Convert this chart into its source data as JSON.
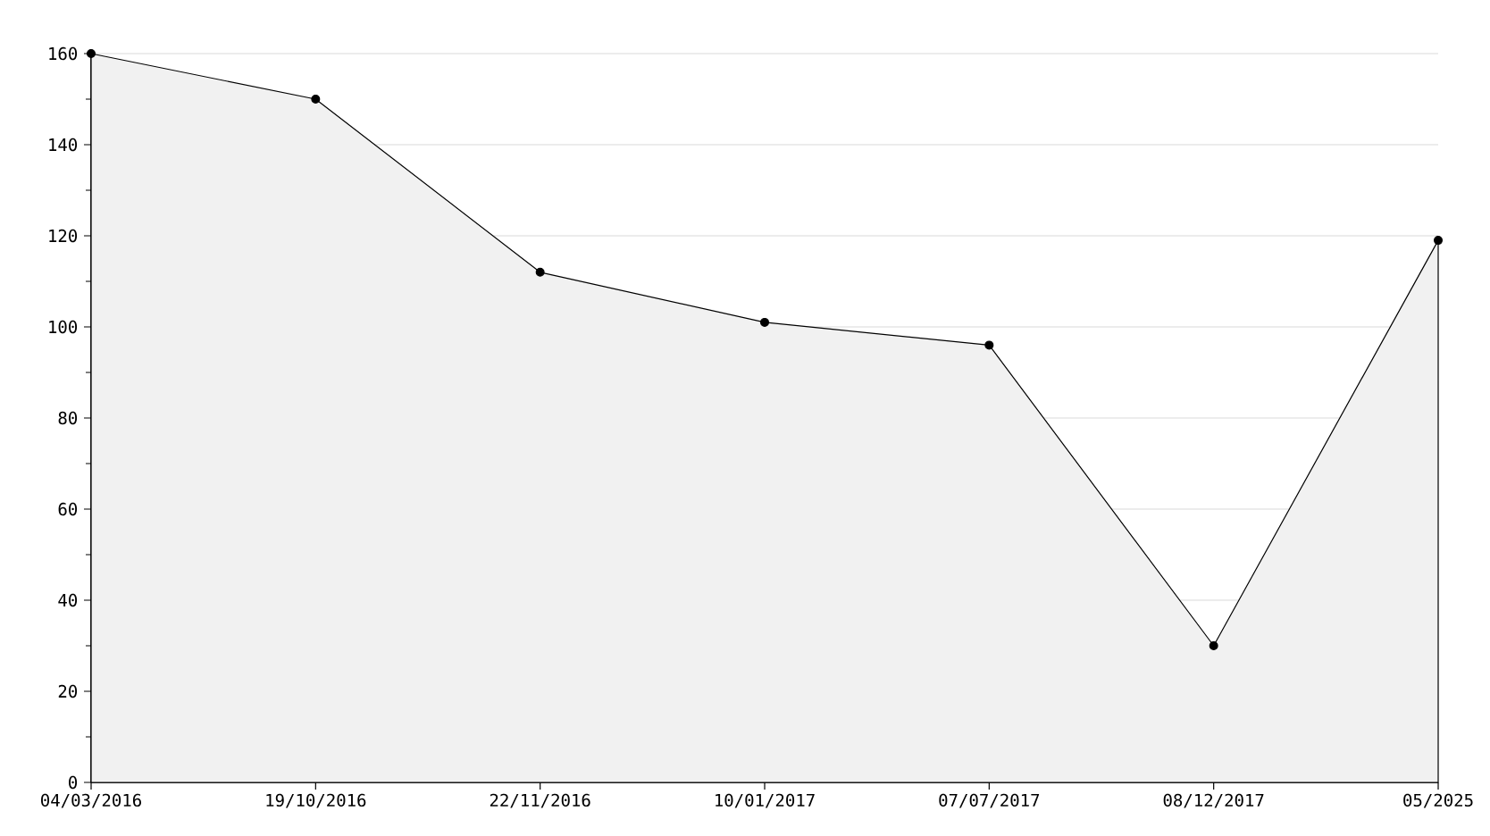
{
  "chart_data": {
    "type": "area",
    "categories": [
      "04/03/2016",
      "19/10/2016",
      "22/11/2016",
      "10/01/2017",
      "07/07/2017",
      "08/12/2017",
      "05/2025"
    ],
    "values": [
      160,
      150,
      112,
      101,
      96,
      30,
      119
    ],
    "color": "#f1f1f1",
    "ylim": [
      0,
      160
    ],
    "yticks": [
      0,
      20,
      40,
      60,
      80,
      100,
      120,
      140,
      160
    ],
    "grid": "y",
    "marker": "circle"
  }
}
